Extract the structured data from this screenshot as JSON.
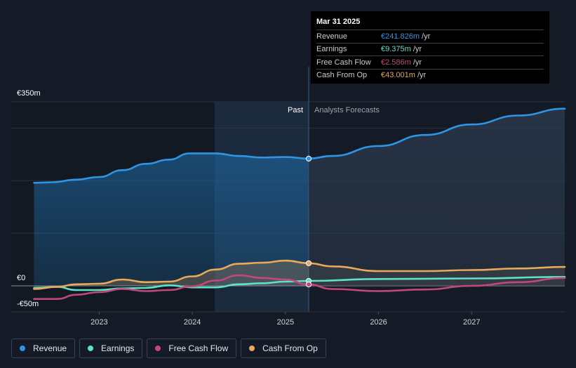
{
  "chart_data": {
    "type": "line",
    "currency": "€",
    "y_labels": {
      "top": "€350m",
      "zero": "€0",
      "bottom": "-€50m"
    },
    "ylim": [
      -50,
      350
    ],
    "xlim": [
      2022.3,
      2028.0
    ],
    "x_ticks": [
      {
        "value": 2023.0,
        "label": "2023"
      },
      {
        "value": 2024.0,
        "label": "2024"
      },
      {
        "value": 2025.0,
        "label": "2025"
      },
      {
        "value": 2026.0,
        "label": "2026"
      },
      {
        "value": 2027.0,
        "label": "2027"
      }
    ],
    "gridlines": [
      350,
      300,
      200,
      100,
      0
    ],
    "divider_x": 2025.25,
    "past_shade_start": 2024.24,
    "past_label": "Past",
    "forecast_label": "Analysts Forecasts",
    "series": [
      {
        "name": "Revenue",
        "color": "#2d95e3",
        "fill": true,
        "points": [
          [
            2022.3,
            196
          ],
          [
            2022.5,
            197
          ],
          [
            2022.75,
            202
          ],
          [
            2023.0,
            207
          ],
          [
            2023.25,
            220
          ],
          [
            2023.5,
            232
          ],
          [
            2023.75,
            240
          ],
          [
            2023.97,
            252
          ],
          [
            2024.25,
            252
          ],
          [
            2024.5,
            247
          ],
          [
            2024.75,
            244
          ],
          [
            2025.0,
            245
          ],
          [
            2025.25,
            242
          ]
        ],
        "forecast": [
          [
            2025.25,
            242
          ],
          [
            2025.5,
            247
          ],
          [
            2026.0,
            266
          ],
          [
            2026.5,
            287
          ],
          [
            2027.0,
            307
          ],
          [
            2027.5,
            324
          ],
          [
            2028.0,
            337
          ]
        ]
      },
      {
        "name": "Earnings",
        "color": "#5ee2c6",
        "fill": false,
        "points": [
          [
            2022.3,
            -4
          ],
          [
            2022.55,
            -2
          ],
          [
            2022.75,
            -8
          ],
          [
            2023.0,
            -8
          ],
          [
            2023.25,
            -5
          ],
          [
            2023.5,
            -4
          ],
          [
            2023.75,
            1
          ],
          [
            2024.0,
            -3
          ],
          [
            2024.25,
            -3
          ],
          [
            2024.5,
            3
          ],
          [
            2024.75,
            5
          ],
          [
            2025.0,
            8
          ],
          [
            2025.25,
            9.4
          ]
        ],
        "forecast": [
          [
            2025.25,
            9.4
          ],
          [
            2026.0,
            13
          ],
          [
            2027.0,
            14
          ],
          [
            2028.0,
            17
          ]
        ]
      },
      {
        "name": "Free Cash Flow",
        "color": "#c2477e",
        "fill": false,
        "points": [
          [
            2022.3,
            -25
          ],
          [
            2022.55,
            -25
          ],
          [
            2022.75,
            -17
          ],
          [
            2023.0,
            -12
          ],
          [
            2023.25,
            -6
          ],
          [
            2023.5,
            -10
          ],
          [
            2023.75,
            -8
          ],
          [
            2024.0,
            -1
          ],
          [
            2024.25,
            10
          ],
          [
            2024.5,
            20
          ],
          [
            2024.75,
            15
          ],
          [
            2025.0,
            12
          ],
          [
            2025.25,
            2.6
          ]
        ],
        "forecast": [
          [
            2025.25,
            2.6
          ],
          [
            2025.5,
            -6
          ],
          [
            2026.0,
            -10
          ],
          [
            2026.5,
            -7
          ],
          [
            2027.0,
            0
          ],
          [
            2027.5,
            7
          ],
          [
            2028.0,
            15
          ]
        ]
      },
      {
        "name": "Cash From Op",
        "color": "#e8a95a",
        "fill": true,
        "points": [
          [
            2022.3,
            -6
          ],
          [
            2022.55,
            -2
          ],
          [
            2022.75,
            3
          ],
          [
            2023.0,
            4
          ],
          [
            2023.25,
            12
          ],
          [
            2023.5,
            7
          ],
          [
            2023.75,
            8
          ],
          [
            2024.0,
            18
          ],
          [
            2024.25,
            31
          ],
          [
            2024.5,
            42
          ],
          [
            2024.75,
            44
          ],
          [
            2025.0,
            48
          ],
          [
            2025.25,
            43
          ]
        ],
        "forecast": [
          [
            2025.25,
            43
          ],
          [
            2025.5,
            37
          ],
          [
            2026.0,
            28
          ],
          [
            2026.5,
            28
          ],
          [
            2027.0,
            30
          ],
          [
            2027.5,
            33
          ],
          [
            2028.0,
            36
          ]
        ]
      }
    ]
  },
  "tooltip": {
    "date": "Mar 31 2025",
    "unit": "/yr",
    "rows": [
      {
        "label": "Revenue",
        "value": "€241.826m",
        "color": "#2d95e3"
      },
      {
        "label": "Earnings",
        "value": "€9.375m",
        "color": "#5ee2c6"
      },
      {
        "label": "Free Cash Flow",
        "value": "€2.586m",
        "color": "#c2477e"
      },
      {
        "label": "Cash From Op",
        "value": "€43.001m",
        "color": "#e8a95a"
      }
    ]
  },
  "legend": [
    {
      "label": "Revenue",
      "color": "#2d95e3"
    },
    {
      "label": "Earnings",
      "color": "#5ee2c6"
    },
    {
      "label": "Free Cash Flow",
      "color": "#c2477e"
    },
    {
      "label": "Cash From Op",
      "color": "#e8a95a"
    }
  ]
}
